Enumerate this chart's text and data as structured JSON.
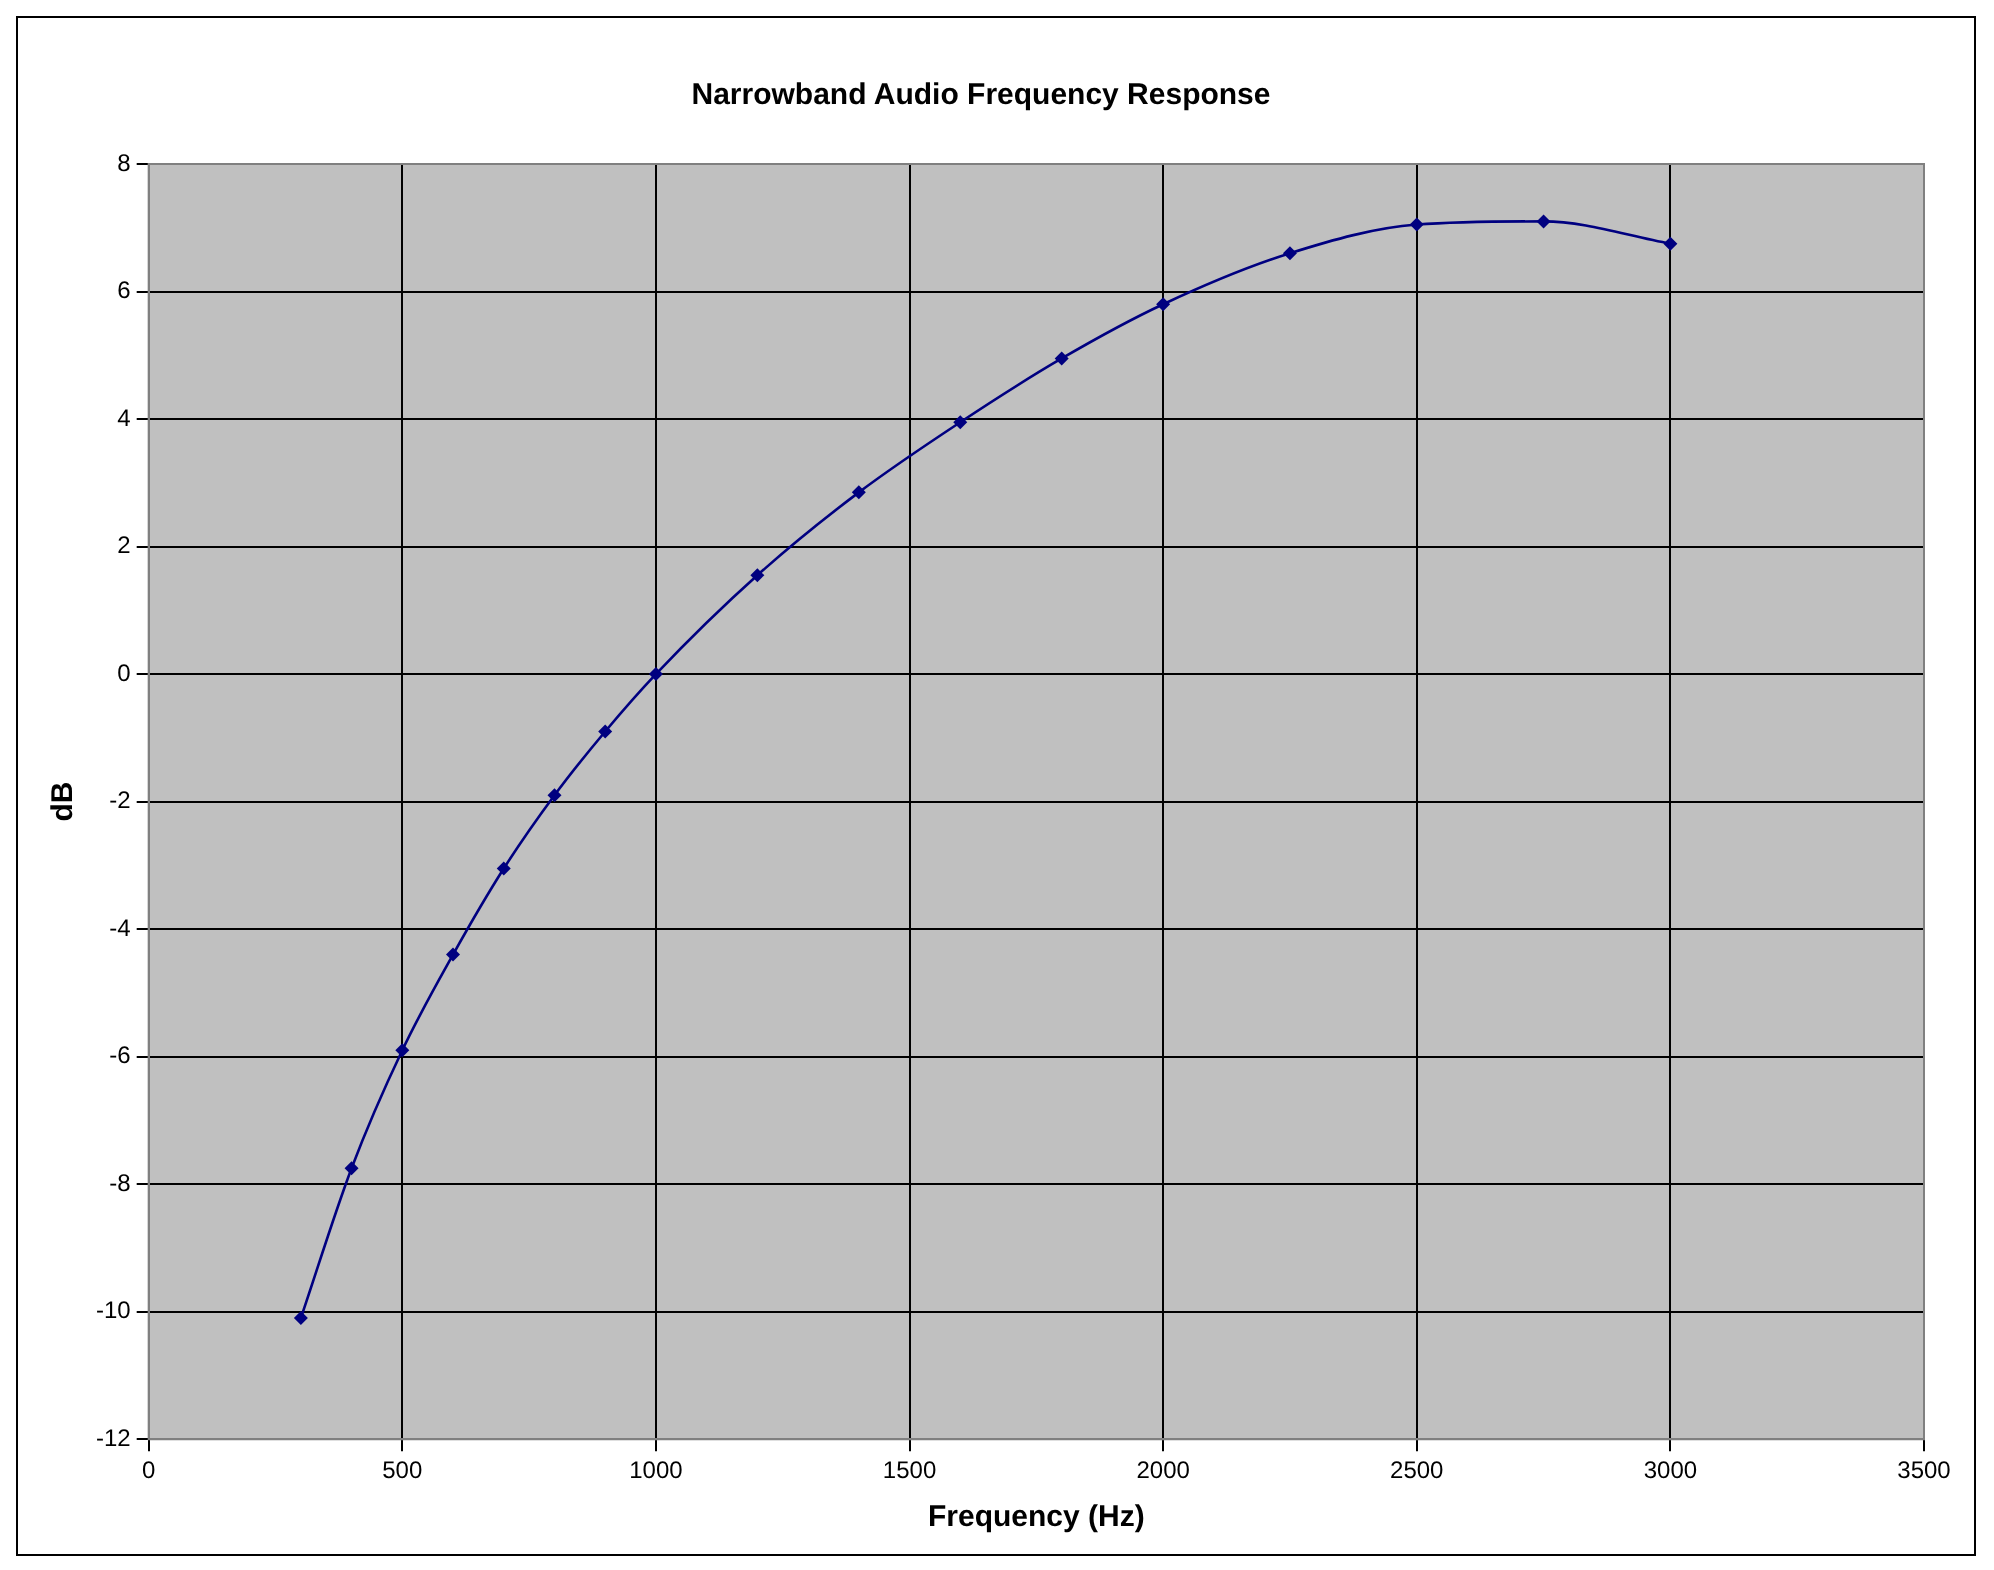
{
  "chart_data": {
    "type": "line",
    "title": "Narrowband Audio Frequency Response",
    "xlabel": "Frequency (Hz)",
    "ylabel": "dB",
    "x": [
      300,
      400,
      500,
      600,
      700,
      800,
      900,
      1000,
      1200,
      1400,
      1600,
      1800,
      2000,
      2250,
      2500,
      2750,
      3000
    ],
    "series": [
      {
        "color": "#000080",
        "values": [
          -10.1,
          -7.75,
          -5.9,
          -4.4,
          -3.05,
          -1.9,
          -0.9,
          0,
          1.55,
          2.85,
          3.95,
          4.95,
          5.8,
          6.6,
          7.05,
          7.1,
          6.75
        ]
      }
    ],
    "xlim": [
      0,
      3500
    ],
    "xticks": [
      0,
      500,
      1000,
      1500,
      2000,
      2500,
      3000,
      3500
    ],
    "ylim": [
      -12,
      8
    ],
    "yticks": [
      -12,
      -10,
      -8,
      -6,
      -4,
      -2,
      0,
      2,
      4,
      6,
      8
    ],
    "grid": true,
    "legend": false,
    "marker": "diamond",
    "line_style": "solid"
  }
}
